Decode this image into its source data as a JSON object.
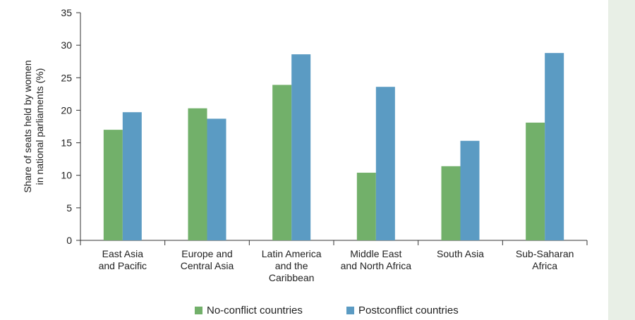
{
  "chart_data": {
    "type": "bar",
    "title": "",
    "ylabel": [
      "Share of seats held by women",
      "in national parliaments (%)"
    ],
    "xlabel": "",
    "ylim": [
      0,
      35
    ],
    "yticks": [
      0,
      5,
      10,
      15,
      20,
      25,
      30,
      35
    ],
    "grid": false,
    "legend_position": "bottom",
    "categories": [
      [
        "East Asia",
        "and Pacific"
      ],
      [
        "Europe and",
        "Central Asia"
      ],
      [
        "Latin America",
        "and the",
        "Caribbean"
      ],
      [
        "Middle East",
        "and North Africa"
      ],
      [
        "South Asia"
      ],
      [
        "Sub-Saharan",
        "Africa"
      ]
    ],
    "series": [
      {
        "name": "No-conflict countries",
        "color": "#72b06a",
        "values": [
          17.0,
          20.3,
          23.9,
          10.4,
          11.4,
          18.1
        ]
      },
      {
        "name": "Postconflict countries",
        "color": "#5b9bc3",
        "values": [
          19.7,
          18.7,
          28.6,
          23.6,
          15.3,
          28.8
        ]
      }
    ]
  },
  "colors": {
    "side_panel": "#e8efe6",
    "axis": "#333333"
  }
}
